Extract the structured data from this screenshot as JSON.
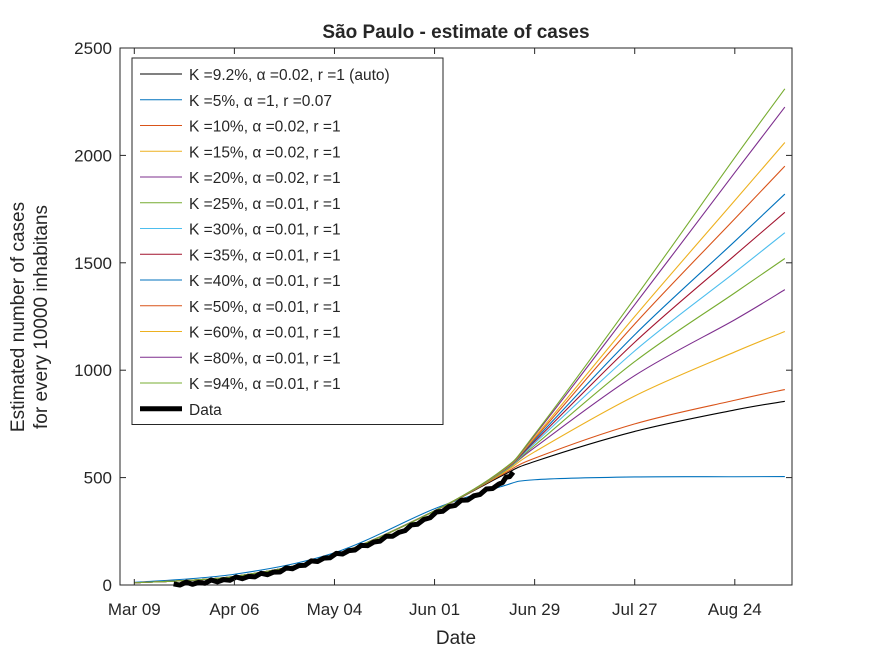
{
  "chart_data": {
    "type": "line",
    "title": "São Paulo - estimate of cases",
    "xlabel": "Date",
    "ylabel_lines": [
      "Estimated number of cases",
      "for every 10000 inhabitans"
    ],
    "x_range": [
      "2020-03-05",
      "2020-09-09"
    ],
    "ylim": [
      0,
      2500
    ],
    "x_ticks": [
      {
        "date": "2020-03-09",
        "label": "Mar 09"
      },
      {
        "date": "2020-04-06",
        "label": "Apr 06"
      },
      {
        "date": "2020-05-04",
        "label": "May 04"
      },
      {
        "date": "2020-06-01",
        "label": "Jun 01"
      },
      {
        "date": "2020-06-29",
        "label": "Jun 29"
      },
      {
        "date": "2020-07-27",
        "label": "Jul 27"
      },
      {
        "date": "2020-08-24",
        "label": "Aug 24"
      }
    ],
    "y_ticks": [
      0,
      500,
      1000,
      1500,
      2000,
      2500
    ],
    "grid": false,
    "legend_position": "top-left",
    "series": [
      {
        "name": "K =9.2%, α =0.02, r =1 (auto)",
        "color": "#000000",
        "points": [
          [
            "2020-03-09",
            10
          ],
          [
            "2020-04-06",
            40
          ],
          [
            "2020-05-04",
            140
          ],
          [
            "2020-06-01",
            345
          ],
          [
            "2020-06-20",
            510
          ],
          [
            "2020-06-29",
            575
          ],
          [
            "2020-07-27",
            715
          ],
          [
            "2020-08-24",
            815
          ],
          [
            "2020-09-07",
            855
          ]
        ]
      },
      {
        "name": "K =5%, α =1, r =0.07",
        "color": "#0072BD",
        "points": [
          [
            "2020-03-09",
            12
          ],
          [
            "2020-04-06",
            50
          ],
          [
            "2020-05-04",
            150
          ],
          [
            "2020-06-01",
            355
          ],
          [
            "2020-06-20",
            460
          ],
          [
            "2020-06-29",
            490
          ],
          [
            "2020-07-27",
            503
          ],
          [
            "2020-08-24",
            504
          ],
          [
            "2020-09-07",
            505
          ]
        ]
      },
      {
        "name": "K =10%, α =0.02, r =1",
        "color": "#D95319",
        "points": [
          [
            "2020-03-09",
            10
          ],
          [
            "2020-04-06",
            40
          ],
          [
            "2020-05-04",
            140
          ],
          [
            "2020-06-01",
            345
          ],
          [
            "2020-06-20",
            515
          ],
          [
            "2020-06-29",
            590
          ],
          [
            "2020-07-27",
            750
          ],
          [
            "2020-08-24",
            860
          ],
          [
            "2020-09-07",
            910
          ]
        ]
      },
      {
        "name": "K =15%, α =0.02, r =1",
        "color": "#EDB120",
        "points": [
          [
            "2020-03-09",
            10
          ],
          [
            "2020-04-06",
            40
          ],
          [
            "2020-05-04",
            140
          ],
          [
            "2020-06-01",
            345
          ],
          [
            "2020-06-20",
            520
          ],
          [
            "2020-06-29",
            620
          ],
          [
            "2020-07-27",
            880
          ],
          [
            "2020-08-24",
            1085
          ],
          [
            "2020-09-07",
            1180
          ]
        ]
      },
      {
        "name": "K =20%, α =0.02, r =1",
        "color": "#7E2F8E",
        "points": [
          [
            "2020-03-09",
            10
          ],
          [
            "2020-04-06",
            40
          ],
          [
            "2020-05-04",
            140
          ],
          [
            "2020-06-01",
            345
          ],
          [
            "2020-06-20",
            525
          ],
          [
            "2020-06-29",
            640
          ],
          [
            "2020-07-27",
            975
          ],
          [
            "2020-08-24",
            1235
          ],
          [
            "2020-09-07",
            1375
          ]
        ]
      },
      {
        "name": "K =25%, α =0.01, r =1",
        "color": "#77AC30",
        "points": [
          [
            "2020-03-09",
            10
          ],
          [
            "2020-04-06",
            40
          ],
          [
            "2020-05-04",
            140
          ],
          [
            "2020-06-01",
            345
          ],
          [
            "2020-06-20",
            525
          ],
          [
            "2020-06-29",
            650
          ],
          [
            "2020-07-27",
            1040
          ],
          [
            "2020-08-24",
            1360
          ],
          [
            "2020-09-07",
            1520
          ]
        ]
      },
      {
        "name": "K =30%, α =0.01, r =1",
        "color": "#4DBEEE",
        "points": [
          [
            "2020-03-09",
            10
          ],
          [
            "2020-04-06",
            40
          ],
          [
            "2020-05-04",
            140
          ],
          [
            "2020-06-01",
            345
          ],
          [
            "2020-06-20",
            528
          ],
          [
            "2020-06-29",
            660
          ],
          [
            "2020-07-27",
            1090
          ],
          [
            "2020-08-24",
            1455
          ],
          [
            "2020-09-07",
            1640
          ]
        ]
      },
      {
        "name": "K =35%, α =0.01, r =1",
        "color": "#A2142F",
        "points": [
          [
            "2020-03-09",
            10
          ],
          [
            "2020-04-06",
            40
          ],
          [
            "2020-05-04",
            140
          ],
          [
            "2020-06-01",
            345
          ],
          [
            "2020-06-20",
            530
          ],
          [
            "2020-06-29",
            668
          ],
          [
            "2020-07-27",
            1130
          ],
          [
            "2020-08-24",
            1535
          ],
          [
            "2020-09-07",
            1735
          ]
        ]
      },
      {
        "name": "K =40%, α =0.01, r =1",
        "color": "#0072BD",
        "points": [
          [
            "2020-03-09",
            10
          ],
          [
            "2020-04-06",
            40
          ],
          [
            "2020-05-04",
            140
          ],
          [
            "2020-06-01",
            345
          ],
          [
            "2020-06-20",
            531
          ],
          [
            "2020-06-29",
            675
          ],
          [
            "2020-07-27",
            1165
          ],
          [
            "2020-08-24",
            1600
          ],
          [
            "2020-09-07",
            1820
          ]
        ]
      },
      {
        "name": "K =50%, α =0.01, r =1",
        "color": "#D95319",
        "points": [
          [
            "2020-03-09",
            10
          ],
          [
            "2020-04-06",
            40
          ],
          [
            "2020-05-04",
            140
          ],
          [
            "2020-06-01",
            345
          ],
          [
            "2020-06-20",
            532
          ],
          [
            "2020-06-29",
            682
          ],
          [
            "2020-07-27",
            1215
          ],
          [
            "2020-08-24",
            1705
          ],
          [
            "2020-09-07",
            1950
          ]
        ]
      },
      {
        "name": "K =60%, α =0.01, r =1",
        "color": "#EDB120",
        "points": [
          [
            "2020-03-09",
            10
          ],
          [
            "2020-04-06",
            40
          ],
          [
            "2020-05-04",
            140
          ],
          [
            "2020-06-01",
            345
          ],
          [
            "2020-06-20",
            533
          ],
          [
            "2020-06-29",
            688
          ],
          [
            "2020-07-27",
            1250
          ],
          [
            "2020-08-24",
            1790
          ],
          [
            "2020-09-07",
            2060
          ]
        ]
      },
      {
        "name": "K =80%, α =0.01, r =1",
        "color": "#7E2F8E",
        "points": [
          [
            "2020-03-09",
            10
          ],
          [
            "2020-04-06",
            40
          ],
          [
            "2020-05-04",
            140
          ],
          [
            "2020-06-01",
            345
          ],
          [
            "2020-06-20",
            535
          ],
          [
            "2020-06-29",
            697
          ],
          [
            "2020-07-27",
            1305
          ],
          [
            "2020-08-24",
            1920
          ],
          [
            "2020-09-07",
            2225
          ]
        ]
      },
      {
        "name": "K =94%, α =0.01, r =1",
        "color": "#77AC30",
        "points": [
          [
            "2020-03-09",
            10
          ],
          [
            "2020-04-06",
            40
          ],
          [
            "2020-05-04",
            140
          ],
          [
            "2020-06-01",
            345
          ],
          [
            "2020-06-20",
            536
          ],
          [
            "2020-06-29",
            702
          ],
          [
            "2020-07-27",
            1335
          ],
          [
            "2020-08-24",
            1990
          ],
          [
            "2020-09-07",
            2310
          ]
        ]
      }
    ],
    "data_series": {
      "name": "Data",
      "color": "#000000",
      "points": [
        [
          "2020-03-20",
          5
        ],
        [
          "2020-03-27",
          12
        ],
        [
          "2020-04-03",
          25
        ],
        [
          "2020-04-10",
          40
        ],
        [
          "2020-04-17",
          60
        ],
        [
          "2020-04-24",
          90
        ],
        [
          "2020-05-01",
          125
        ],
        [
          "2020-05-08",
          160
        ],
        [
          "2020-05-15",
          200
        ],
        [
          "2020-05-22",
          245
        ],
        [
          "2020-05-29",
          305
        ],
        [
          "2020-06-05",
          365
        ],
        [
          "2020-06-12",
          415
        ],
        [
          "2020-06-19",
          470
        ],
        [
          "2020-06-23",
          525
        ]
      ]
    }
  }
}
